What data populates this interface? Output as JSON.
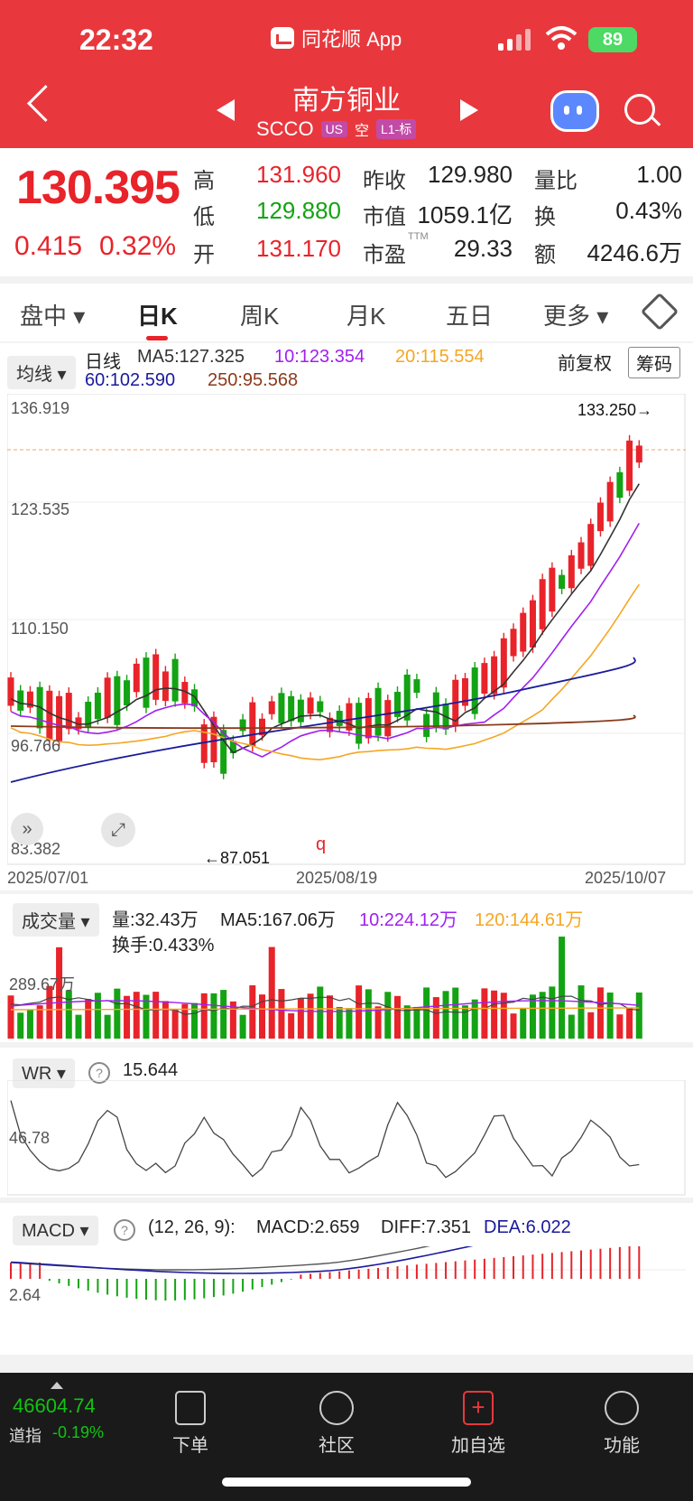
{
  "status": {
    "time": "22:32",
    "app": "同花顺 App",
    "battery": "89"
  },
  "stock": {
    "name": "南方铜业",
    "code": "SCCO",
    "market": "US",
    "short": "空",
    "level": "L1-标"
  },
  "quote": {
    "price": "130.395",
    "change": "0.415",
    "change_pct": "0.32%",
    "labels": {
      "high": "高",
      "low": "低",
      "open": "开",
      "prev": "昨收",
      "mktcap": "市值",
      "pe": "市盈",
      "pe_sup": "TTM",
      "vol_ratio": "量比",
      "turnover": "换",
      "amount": "额"
    },
    "high": "131.960",
    "low": "129.880",
    "open": "131.170",
    "prev_close": "129.980",
    "market_cap": "1059.1亿",
    "pe": "29.33",
    "vol_ratio": "1.00",
    "turnover": "0.43%",
    "amount": "4246.6万"
  },
  "tabs": [
    "盘中",
    "日K",
    "周K",
    "月K",
    "五日",
    "更多"
  ],
  "kline": {
    "indicator_btn": "均线",
    "period": "日线",
    "ma5": "MA5:127.325",
    "ma10": "10:123.354",
    "ma20": "20:115.554",
    "ma60": "60:102.590",
    "ma250": "250:95.568",
    "adjust": "前复权",
    "chips": "筹码",
    "y_labels": [
      "136.919",
      "123.535",
      "110.150",
      "96.766",
      "83.382"
    ],
    "high_mark": "133.250→",
    "low_mark": "←87.051",
    "x_labels": [
      "2025/07/01",
      "2025/08/19",
      "2025/10/07"
    ],
    "event_mark": "q",
    "colors": {
      "up": "#e8232a",
      "down": "#13a313",
      "ma5": "#333333",
      "ma10": "#a020f0",
      "ma20": "#f5a623",
      "ma60": "#1a1a9c",
      "ma250": "#8b3a1a"
    }
  },
  "volume": {
    "btn": "成交量",
    "vol": "量:32.43万",
    "ma5": "MA5:167.06万",
    "ma10": "10:224.12万",
    "ma120": "120:144.61万",
    "turnover": "换手:0.433%",
    "y_label": "289.67万"
  },
  "wr": {
    "btn": "WR",
    "help": "?",
    "value": "15.644",
    "y_label": "46.78"
  },
  "macd": {
    "btn": "MACD",
    "help": "?",
    "params": "(12, 26, 9):",
    "macd": "MACD:2.659",
    "diff": "DIFF:7.351",
    "dea": "DEA:6.022",
    "y_label": "2.64"
  },
  "footer": {
    "index_value": "46604.74",
    "index_name": "道指",
    "index_change": "-0.19%",
    "items": [
      "下单",
      "社区",
      "加自选",
      "功能"
    ]
  }
}
